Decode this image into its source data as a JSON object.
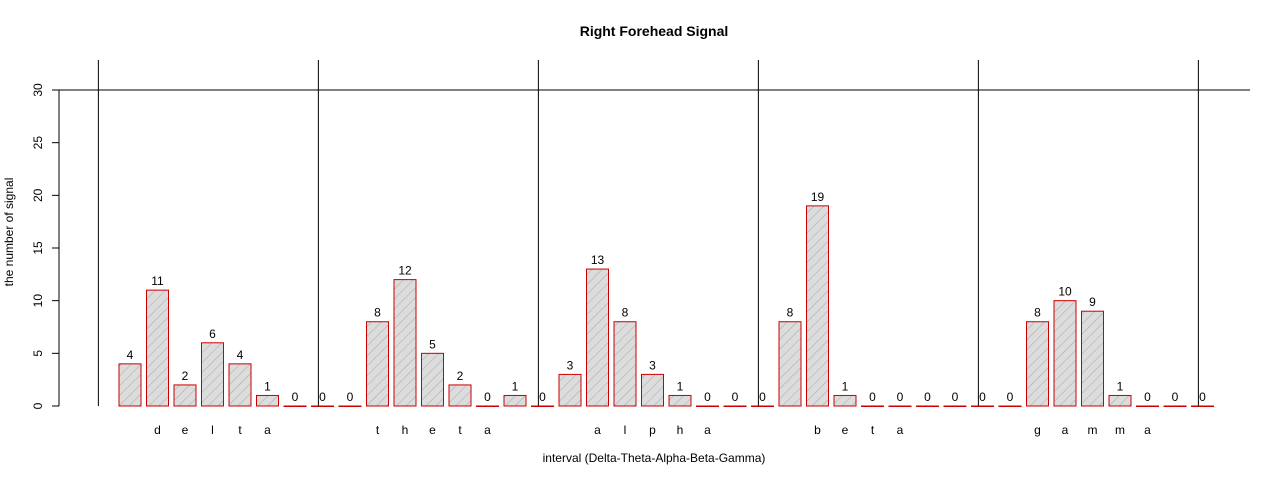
{
  "chart_data": {
    "type": "bar",
    "title": "Right Forehead Signal",
    "xlabel": "interval (Delta-Theta-Alpha-Beta-Gamma)",
    "ylabel": "the number of signal",
    "ylim": [
      0,
      30
    ],
    "yticks": [
      "0",
      "5",
      "10",
      "15",
      "20",
      "25",
      "30"
    ],
    "grid": false,
    "bar_fill": "#d9d9d9",
    "bar_border": "#cc0000",
    "categories": [
      "",
      "d",
      "e",
      "l",
      "t",
      "a",
      "",
      "",
      "",
      "t",
      "h",
      "e",
      "t",
      "a",
      "",
      "",
      "",
      "a",
      "l",
      "p",
      "h",
      "a",
      "",
      "",
      "",
      "b",
      "e",
      "t",
      "a",
      "",
      "",
      "",
      "",
      "g",
      "a",
      "m",
      "m",
      "a",
      "",
      ""
    ],
    "values": [
      4,
      11,
      2,
      6,
      4,
      1,
      0,
      0,
      0,
      8,
      12,
      5,
      2,
      0,
      1,
      0,
      3,
      13,
      8,
      3,
      1,
      0,
      0,
      0,
      8,
      19,
      1,
      0,
      0,
      0,
      0,
      0,
      0,
      8,
      10,
      9,
      1,
      0,
      0,
      0
    ]
  }
}
